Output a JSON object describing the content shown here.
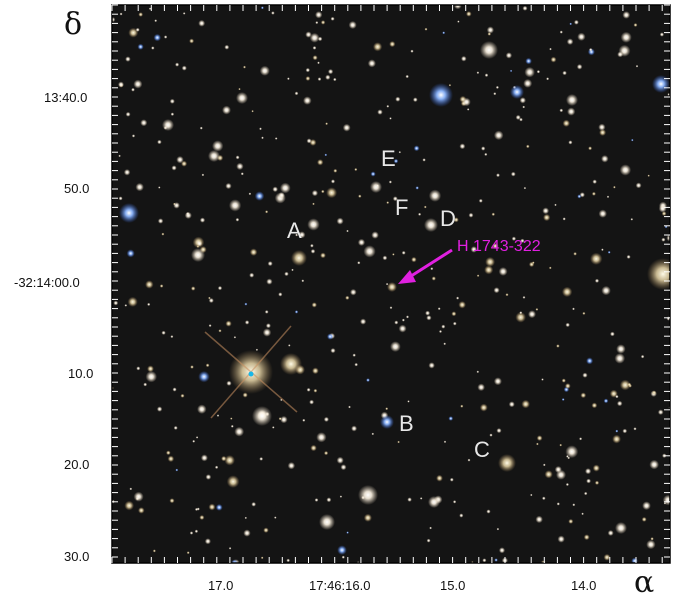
{
  "axes": {
    "y_symbol": "δ",
    "x_symbol": "α",
    "y_ticks": [
      "13:40.0",
      "50.0",
      "-32:14:00.0",
      "10.0",
      "20.0",
      "30.0"
    ],
    "x_ticks": [
      "17.0",
      "17:46:16.0",
      "15.0",
      "14.0"
    ]
  },
  "field_stars": [
    "A",
    "B",
    "C",
    "D",
    "E",
    "F"
  ],
  "target": {
    "label": "H 1743-322",
    "color": "#e020e0"
  },
  "colors": {
    "sky": "#141414",
    "frame": "#000000",
    "labels": "#e8e8e8"
  }
}
